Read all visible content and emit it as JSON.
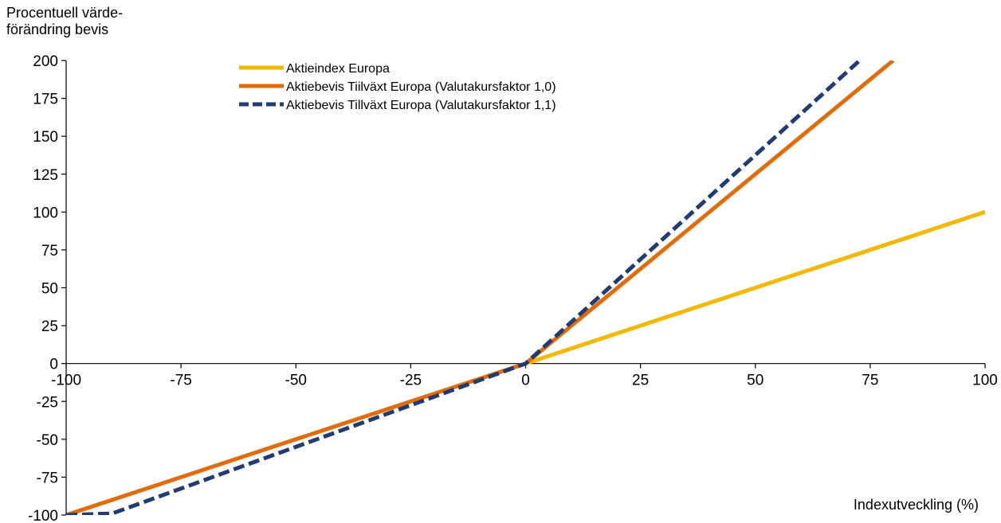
{
  "chart_data": {
    "type": "line",
    "ylabel": [
      "Procentuell värde-",
      "förändring bevis"
    ],
    "xlabel": "Indexutveckling (%)",
    "xlim": [
      -100,
      100
    ],
    "ylim": [
      -100,
      200
    ],
    "x_ticks": [
      -100,
      -75,
      -50,
      -25,
      0,
      25,
      50,
      75,
      100
    ],
    "y_ticks": [
      200,
      175,
      150,
      125,
      100,
      75,
      50,
      25,
      0,
      -25,
      -50,
      -75,
      -100
    ],
    "grid": false,
    "legend_position": "top-center",
    "series": [
      {
        "name": "Aktieindex Europa",
        "color": "#F5B800",
        "dash": "solid",
        "x": [
          0,
          100
        ],
        "y": [
          0,
          100
        ]
      },
      {
        "name": "Aktiebevis Tiilväxt Europa (Valutakursfaktor 1,0)",
        "color": "#E26B0A",
        "dash": "solid",
        "x": [
          -100,
          0,
          80
        ],
        "y": [
          -100,
          0,
          200
        ]
      },
      {
        "name": "Aktiebevis Tillväxt Europa (Valutakursfaktor 1,1)",
        "color": "#1F3D73",
        "dash": "dashed",
        "x": [
          -100,
          -90,
          0,
          72.7
        ],
        "y": [
          -100,
          -99,
          0,
          200
        ]
      }
    ]
  }
}
